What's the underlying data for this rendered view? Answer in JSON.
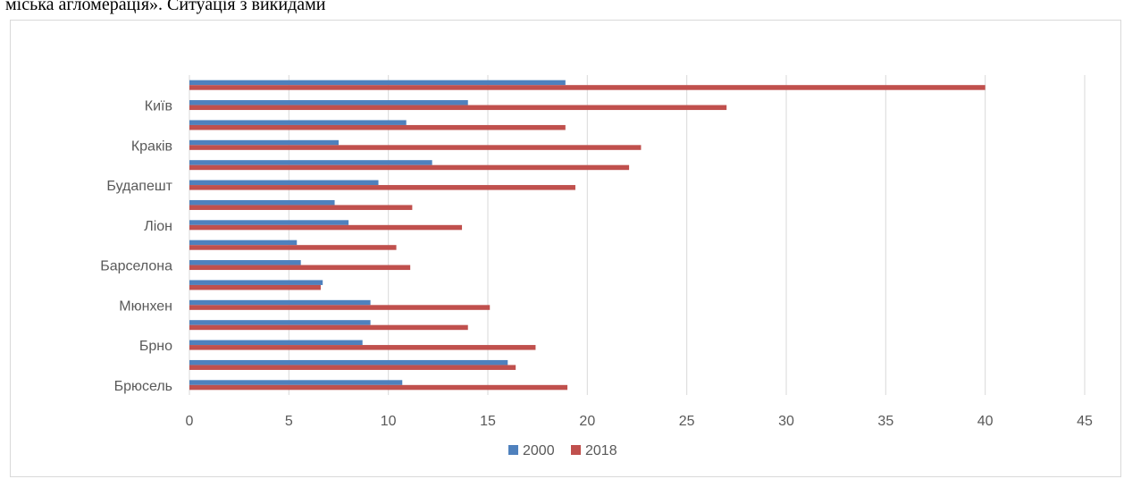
{
  "heading": "міська агломерація». Ситуація з викидами",
  "chart_data": {
    "type": "bar",
    "orientation": "horizontal",
    "categories": [
      "Брюсель",
      "",
      "Брно",
      "",
      "Мюнхен",
      "",
      "Барселона",
      "",
      "Ліон",
      "",
      "Будапешт",
      "",
      "Краків",
      "",
      "Київ",
      ""
    ],
    "series": [
      {
        "name": "2000",
        "color": "#4f81bd",
        "values": [
          10.7,
          16.0,
          8.7,
          9.1,
          9.1,
          6.7,
          5.6,
          5.4,
          8.0,
          7.3,
          9.5,
          12.2,
          7.5,
          10.9,
          14.0,
          18.9
        ]
      },
      {
        "name": "2018",
        "color": "#c0504d",
        "values": [
          19.0,
          16.4,
          17.4,
          14.0,
          15.1,
          6.6,
          11.1,
          10.4,
          13.7,
          11.2,
          19.4,
          22.1,
          22.7,
          18.9,
          27.0,
          40.0
        ]
      }
    ],
    "xlim": [
      0,
      45
    ],
    "xticks": [
      "0",
      "5",
      "10",
      "15",
      "20",
      "25",
      "30",
      "35",
      "40",
      "45"
    ],
    "grid": true,
    "legend": "bottom"
  }
}
